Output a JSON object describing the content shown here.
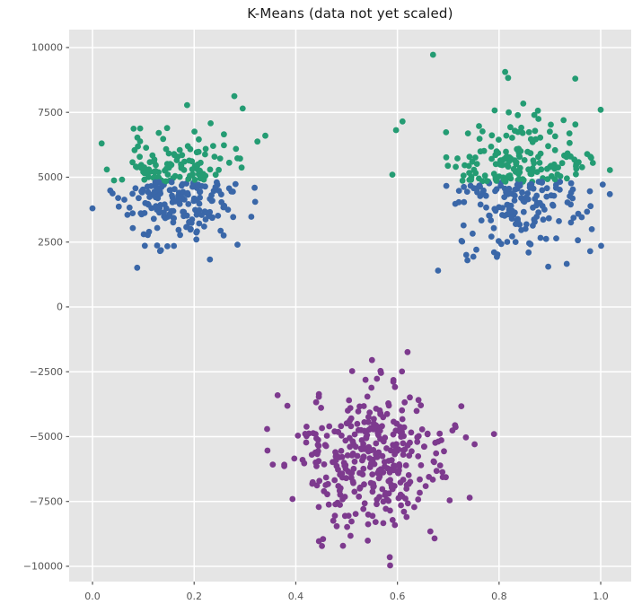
{
  "chart_data": {
    "type": "scatter",
    "title": "K-Means (data not yet scaled)",
    "xlabel": "",
    "ylabel": "",
    "legend": "none",
    "grid": true,
    "style": "ggplot",
    "xlim": [
      -0.046,
      1.06
    ],
    "ylim": [
      -10590,
      10690
    ],
    "x_ticks": [
      0.0,
      0.2,
      0.4,
      0.6,
      0.8,
      1.0
    ],
    "x_tick_labels": [
      "0.0",
      "0.2",
      "0.4",
      "0.6",
      "0.8",
      "1.0"
    ],
    "y_ticks": [
      10000,
      7500,
      5000,
      2500,
      0,
      -2500,
      -5000,
      -7500,
      -10000
    ],
    "y_tick_labels": [
      "10000",
      "7500",
      "5000",
      "2500",
      "0",
      "−2500",
      "−5000",
      "−7500",
      "−10000"
    ],
    "marker": {
      "shape": "circle",
      "radius_px": 3.4
    },
    "colors": {
      "cluster_green": "#249c73",
      "cluster_blue": "#3a67a8",
      "cluster_purple": "#7d3a8e",
      "plot_bg": "#e5e5e5",
      "grid": "#ffffff",
      "tick_label": "#555555",
      "title": "#1a1a1a",
      "figure_bg": "#ffffff"
    },
    "kmeans_boundary_y": 4830,
    "seed": 11,
    "clusters": [
      {
        "name": "top-left-blob",
        "n": 280,
        "cx": 0.165,
        "sx": 0.055,
        "cy": 4500,
        "sy": 1050,
        "split_at_y": 4830,
        "color_above": "cluster_green",
        "color_below": "cluster_blue"
      },
      {
        "name": "top-right-blob",
        "n": 330,
        "cx": 0.84,
        "sx": 0.07,
        "cy": 4950,
        "sy": 1300,
        "split_at_y": 4830,
        "color_above": "cluster_green",
        "color_below": "cluster_blue"
      },
      {
        "name": "bottom-blob",
        "n": 360,
        "cx": 0.545,
        "sx": 0.075,
        "cy": -5750,
        "sy": 1350,
        "color": "cluster_purple"
      }
    ],
    "outlier_points": [
      {
        "x": 0.67,
        "y": 9720,
        "color": "cluster_green"
      },
      {
        "x": 1.0,
        "y": 7600,
        "color": "cluster_green"
      },
      {
        "x": 0.95,
        "y": 8800,
        "color": "cluster_green"
      },
      {
        "x": 0.61,
        "y": 7150,
        "color": "cluster_green"
      },
      {
        "x": 0.59,
        "y": 5100,
        "color": "cluster_green"
      },
      {
        "x": 0.34,
        "y": 6600,
        "color": "cluster_green"
      },
      {
        "x": 0.0,
        "y": 3800,
        "color": "cluster_blue"
      },
      {
        "x": 0.32,
        "y": 4050,
        "color": "cluster_blue"
      },
      {
        "x": 0.68,
        "y": 1400,
        "color": "cluster_blue"
      },
      {
        "x": 0.79,
        "y": -4900,
        "color": "cluster_purple"
      },
      {
        "x": 0.55,
        "y": -2050,
        "color": "cluster_purple"
      },
      {
        "x": 0.585,
        "y": -9650,
        "color": "cluster_purple"
      }
    ]
  }
}
